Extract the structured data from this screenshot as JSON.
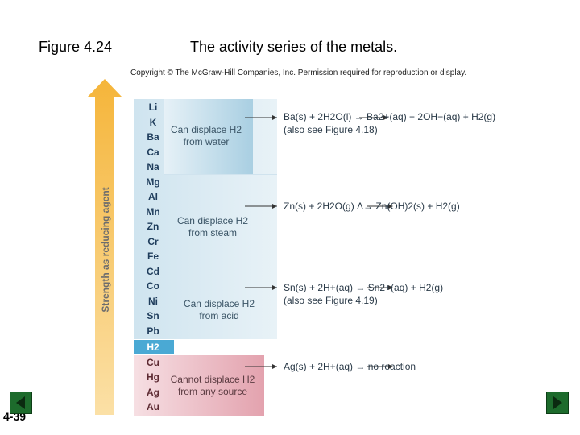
{
  "header": {
    "figure_label": "Figure 4.24",
    "title": "The activity series of the metals.",
    "copyright": "Copyright © The McGraw-Hill Companies, Inc. Permission required for reproduction or display."
  },
  "slide_number": "4-39",
  "axis_label": "Strength as reducing agent",
  "metals": [
    "Li",
    "K",
    "Ba",
    "Ca",
    "Na",
    "Mg",
    "Al",
    "Mn",
    "Zn",
    "Cr",
    "Fe",
    "Cd",
    "Co",
    "Ni",
    "Sn",
    "Pb",
    "H2",
    "Cu",
    "Hg",
    "Ag",
    "Au"
  ],
  "zones": {
    "water": [
      "Can displace H2",
      "from water"
    ],
    "steam": [
      "Can displace H2",
      "from steam"
    ],
    "acid": [
      "Can displace H2",
      "from acid"
    ],
    "none": [
      "Cannot displace H2",
      "from any source"
    ]
  },
  "equations": {
    "water": "Ba(s) + 2H2O(l) → Ba2+(aq) + 2OH−(aq) + H2(g)",
    "water_note": "(also see Figure 4.18)",
    "steam": "Zn(s) + 2H2O(g) Δ→ Zn(OH)2(s) + H2(g)",
    "acid": "Sn(s) + 2H+(aq) → Sn2+(aq) + H2(g)",
    "acid_note": "(also see Figure 4.19)",
    "none": "Ag(s) + 2H+(aq) → no reaction"
  },
  "colors": {
    "arrow": "#f5b53a",
    "zone_blue": "#dcebf3",
    "zone_water": "#b8d7e6",
    "h2_box": "#4aa9d4",
    "zone_red": "#e8a8b3",
    "nav": "#1d6b2c"
  }
}
